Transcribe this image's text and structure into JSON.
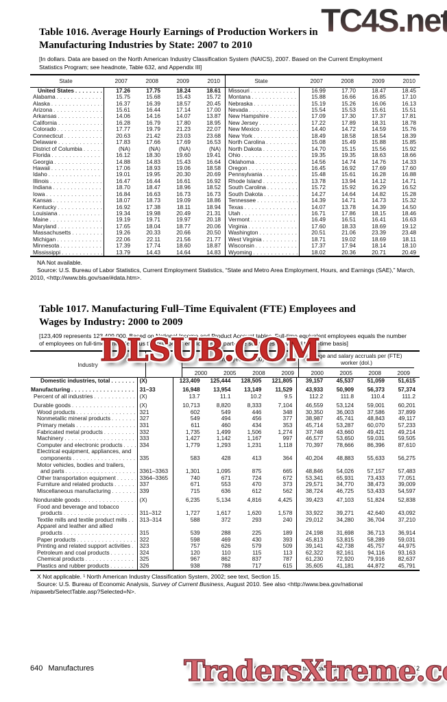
{
  "watermarks": {
    "top": "TC4S.net",
    "middle": "DLSUB.COM",
    "bottom": "TradersXtreme.com"
  },
  "footer": {
    "page_number": "640",
    "section": "Manufactures",
    "census_credit": "U.S. Census Bureau, Statistical Abstract of the United States: 2012"
  },
  "table1016": {
    "title_line1": "Table 1016. Average Hourly Earnings of Production Workers in",
    "title_line2": "Manufacturing Industries by State: 2007 to 2010",
    "headnote": "[In dollars. Data are based on the North American Industry Classification System (NAICS), 2007. Based on the Current Employment Statistics Program; see headnote, Table 632, and Appendix III]",
    "col_headers": [
      "State",
      "2007",
      "2008",
      "2009",
      "2010"
    ],
    "left_rows": [
      {
        "state": "United States",
        "bold": true,
        "values": [
          "17.26",
          "17.75",
          "18.24",
          "18.61"
        ]
      },
      {
        "state": "Alabama",
        "values": [
          "15.75",
          "15.68",
          "15.43",
          "15.72"
        ]
      },
      {
        "state": "Alaska",
        "values": [
          "16.37",
          "16.39",
          "18.57",
          "20.45"
        ]
      },
      {
        "state": "Arizona",
        "values": [
          "15.61",
          "16.44",
          "17.14",
          "17.00"
        ]
      },
      {
        "state": "Arkansas",
        "values": [
          "14.06",
          "14.16",
          "14.07",
          "13.87"
        ]
      },
      {
        "state": "California",
        "values": [
          "16.28",
          "16.79",
          "17.80",
          "18.95"
        ]
      },
      {
        "state": "Colorado",
        "values": [
          "17.77",
          "19.79",
          "21.23",
          "22.07"
        ]
      },
      {
        "state": "Connecticut",
        "values": [
          "20.63",
          "21.42",
          "23.03",
          "23.68"
        ]
      },
      {
        "state": "Delaware",
        "values": [
          "17.83",
          "17.66",
          "17.69",
          "16.53"
        ]
      },
      {
        "state": "District of Columbia",
        "values": [
          "(NA)",
          "(NA)",
          "(NA)",
          "(NA)"
        ]
      },
      {
        "state": "Florida",
        "values": [
          "16.12",
          "18.30",
          "19.60",
          "19.41"
        ]
      },
      {
        "state": "Georgia",
        "values": [
          "14.88",
          "14.83",
          "15.43",
          "16.64"
        ]
      },
      {
        "state": "Hawaii",
        "values": [
          "17.06",
          "18.93",
          "19.06",
          "18.58"
        ]
      },
      {
        "state": "Idaho",
        "values": [
          "19.01",
          "19.95",
          "20.30",
          "20.69"
        ]
      },
      {
        "state": "Illinois",
        "values": [
          "16.47",
          "16.44",
          "16.61",
          "16.92"
        ]
      },
      {
        "state": "Indiana",
        "values": [
          "18.70",
          "18.47",
          "18.96",
          "18.52"
        ]
      },
      {
        "state": "Iowa",
        "values": [
          "16.84",
          "16.63",
          "16.73",
          "16.73"
        ]
      },
      {
        "state": "Kansas",
        "values": [
          "18.07",
          "18.73",
          "19.09",
          "18.86"
        ]
      },
      {
        "state": "Kentucky",
        "values": [
          "16.92",
          "17.38",
          "18.11",
          "18.94"
        ]
      },
      {
        "state": "Louisiana",
        "values": [
          "19.34",
          "19.98",
          "20.49",
          "21.31"
        ]
      },
      {
        "state": "Maine",
        "values": [
          "19.19",
          "19.71",
          "19.97",
          "20.18"
        ]
      },
      {
        "state": "Maryland",
        "values": [
          "17.65",
          "18.04",
          "18.77",
          "20.06"
        ]
      },
      {
        "state": "Massachusetts",
        "values": [
          "19.26",
          "20.33",
          "20.66",
          "20.50"
        ]
      },
      {
        "state": "Michigan",
        "values": [
          "22.06",
          "22.11",
          "21.56",
          "21.77"
        ]
      },
      {
        "state": "Minnesota",
        "values": [
          "17.39",
          "17.74",
          "18.60",
          "18.87"
        ]
      },
      {
        "state": "Mississippi",
        "values": [
          "13.79",
          "14.43",
          "14.64",
          "14.83"
        ]
      }
    ],
    "right_rows": [
      {
        "state": "Missouri",
        "values": [
          "16.99",
          "17.70",
          "18.47",
          "18.45"
        ]
      },
      {
        "state": "Montana",
        "values": [
          "15.88",
          "16.66",
          "16.85",
          "17.10"
        ]
      },
      {
        "state": "Nebraska",
        "values": [
          "15.19",
          "15.26",
          "16.06",
          "16.13"
        ]
      },
      {
        "state": "Nevada",
        "values": [
          "15.54",
          "15.53",
          "15.61",
          "15.51"
        ]
      },
      {
        "state": "New Hampshire",
        "values": [
          "17.09",
          "17.30",
          "17.37",
          "17.81"
        ]
      },
      {
        "state": "New Jersey",
        "values": [
          "17.22",
          "17.89",
          "18.31",
          "18.78"
        ]
      },
      {
        "state": "New Mexico",
        "values": [
          "14.40",
          "14.72",
          "14.59",
          "15.76"
        ]
      },
      {
        "state": "New York",
        "values": [
          "18.49",
          "18.58",
          "18.54",
          "18.39"
        ]
      },
      {
        "state": "North Carolina",
        "values": [
          "15.08",
          "15.49",
          "15.88",
          "15.85"
        ]
      },
      {
        "state": "North Dakota",
        "values": [
          "14.70",
          "15.15",
          "15.56",
          "15.92"
        ]
      },
      {
        "state": "Ohio",
        "values": [
          "19.35",
          "19.35",
          "18.63",
          "18.66"
        ]
      },
      {
        "state": "Oklahoma",
        "values": [
          "14.56",
          "14.74",
          "14.76",
          "14.33"
        ]
      },
      {
        "state": "Oregon",
        "values": [
          "16.45",
          "16.92",
          "17.69",
          "17.60"
        ]
      },
      {
        "state": "Pennsylvania",
        "values": [
          "15.48",
          "15.61",
          "16.28",
          "16.88"
        ]
      },
      {
        "state": "Rhode Island",
        "values": [
          "13.78",
          "13.94",
          "14.12",
          "14.71"
        ]
      },
      {
        "state": "South Carolina",
        "values": [
          "15.72",
          "15.92",
          "16.29",
          "16.52"
        ]
      },
      {
        "state": "South Dakota",
        "values": [
          "14.27",
          "14.64",
          "14.82",
          "15.28"
        ]
      },
      {
        "state": "Tennessee",
        "values": [
          "14.39",
          "14.71",
          "14.73",
          "15.32"
        ]
      },
      {
        "state": "Texas",
        "values": [
          "14.07",
          "13.78",
          "14.39",
          "14.50"
        ]
      },
      {
        "state": "Utah",
        "values": [
          "16.71",
          "17.86",
          "18.15",
          "18.46"
        ]
      },
      {
        "state": "Vermont",
        "values": [
          "16.49",
          "16.51",
          "16.41",
          "16.63"
        ]
      },
      {
        "state": "Virginia",
        "values": [
          "17.60",
          "18.33",
          "18.69",
          "19.12"
        ]
      },
      {
        "state": "Washington",
        "values": [
          "20.51",
          "21.06",
          "23.39",
          "23.48"
        ]
      },
      {
        "state": "West Virginia",
        "values": [
          "18.71",
          "19.02",
          "18.69",
          "18.11"
        ]
      },
      {
        "state": "Wisconsin",
        "values": [
          "17.37",
          "17.94",
          "18.14",
          "18.10"
        ]
      },
      {
        "state": "Wyoming",
        "values": [
          "18.02",
          "20.36",
          "20.71",
          "20.49"
        ]
      }
    ],
    "na_note": "NA Not available.",
    "source": "Source: U.S. Bureau of Labor Statistics, Current Employment Statistics, “State and Metro Area Employment, Hours, and Earnings (SAE),” March, 2010, <http://www.bls.gov/sae/#data.htm>."
  },
  "table1017": {
    "title_line1": "Table 1017. Manufacturing Full–Time Equivalent (FTE) Employees and",
    "title_line2": "Wages by Industry: 2000 to 2009",
    "headnote": "[123,409 represents 123,409,000. Based on National Income and Product Account tables. Full-time equivalent employees equals the number of employees on full-time schedules plus the number of employees for part-time schedules converted to full-time basis]",
    "industry_header": "Industry",
    "code_header": "",
    "employees_group_header": "Employees (1,000)",
    "wage_group_header": "Wage and salary accruals per (FTE) worker (dol.)",
    "year_headers": [
      "2000",
      "2005",
      "2008",
      "2009"
    ],
    "rows": [
      {
        "label_lines": [
          "Domestic industries, total"
        ],
        "indent": 3,
        "bold": true,
        "code": "(X)",
        "emp": [
          "123,409",
          "125,444",
          "128,505",
          "121,805"
        ],
        "wage": [
          "39,157",
          "45,537",
          "51,059",
          "51,615"
        ]
      },
      {
        "label_lines": [
          "Manufacturing"
        ],
        "indent": 0,
        "bold": true,
        "gap": true,
        "code": "31–33",
        "emp": [
          "16,948",
          "13,954",
          "13,149",
          "11,529"
        ],
        "wage": [
          "43,933",
          "50,909",
          "56,373",
          "57,374"
        ]
      },
      {
        "label_lines": [
          "Percent of all industries"
        ],
        "indent": 1,
        "code": "(X)",
        "emp": [
          "13.7",
          "11.1",
          "10.2",
          "9.5"
        ],
        "wage": [
          "112.2",
          "111.8",
          "110.4",
          "111.2"
        ]
      },
      {
        "label_lines": [
          "Durable goods"
        ],
        "indent": 1,
        "gap": true,
        "code": "(X)",
        "emp": [
          "10,713",
          "8,820",
          "8,333",
          "7,104"
        ],
        "wage": [
          "46,559",
          "53,124",
          "59,001",
          "60,201"
        ]
      },
      {
        "label_lines": [
          "Wood products"
        ],
        "indent": 2,
        "code": "321",
        "emp": [
          "602",
          "549",
          "446",
          "348"
        ],
        "wage": [
          "30,350",
          "36,003",
          "37,586",
          "37,899"
        ]
      },
      {
        "label_lines": [
          "Nonmetallic mineral products"
        ],
        "indent": 2,
        "code": "327",
        "emp": [
          "549",
          "494",
          "456",
          "377"
        ],
        "wage": [
          "38,987",
          "45,741",
          "48,843",
          "49,117"
        ]
      },
      {
        "label_lines": [
          "Primary metals"
        ],
        "indent": 2,
        "code": "331",
        "emp": [
          "611",
          "460",
          "434",
          "353"
        ],
        "wage": [
          "45,714",
          "53,287",
          "60,070",
          "57,233"
        ]
      },
      {
        "label_lines": [
          "Fabricated metal products"
        ],
        "indent": 2,
        "code": "332",
        "emp": [
          "1,735",
          "1,499",
          "1,506",
          "1,274"
        ],
        "wage": [
          "37,748",
          "43,660",
          "49,421",
          "49,214"
        ]
      },
      {
        "label_lines": [
          "Machinery"
        ],
        "indent": 2,
        "code": "333",
        "emp": [
          "1,427",
          "1,142",
          "1,167",
          "997"
        ],
        "wage": [
          "46,577",
          "53,650",
          "59,031",
          "59,505"
        ]
      },
      {
        "label_lines": [
          "Computer and electronic products"
        ],
        "indent": 2,
        "code": "334",
        "emp": [
          "1,779",
          "1,293",
          "1,231",
          "1,118"
        ],
        "wage": [
          "70,397",
          "78,666",
          "86,396",
          "87,610"
        ]
      },
      {
        "label_lines": [
          "Electrical equipment, appliances, and",
          "components"
        ],
        "indent": 2,
        "code": "335",
        "emp": [
          "583",
          "428",
          "413",
          "364"
        ],
        "wage": [
          "40,204",
          "48,883",
          "55,633",
          "56,275"
        ]
      },
      {
        "label_lines": [
          "Motor vehicles, bodies and trailers,",
          "and parts"
        ],
        "indent": 2,
        "code": "3361–3363",
        "emp": [
          "1,301",
          "1,095",
          "875",
          "665"
        ],
        "wage": [
          "48,846",
          "54,026",
          "57,157",
          "57,483"
        ]
      },
      {
        "label_lines": [
          "Other transportation equipment"
        ],
        "indent": 2,
        "code": "3364–3365",
        "emp": [
          "740",
          "671",
          "724",
          "672"
        ],
        "wage": [
          "53,341",
          "65,931",
          "73,433",
          "77,051"
        ]
      },
      {
        "label_lines": [
          "Furniture and related products"
        ],
        "indent": 2,
        "code": "337",
        "emp": [
          "671",
          "553",
          "470",
          "373"
        ],
        "wage": [
          "29,571",
          "34,770",
          "38,473",
          "39,009"
        ]
      },
      {
        "label_lines": [
          "Miscellaneous manufacturing"
        ],
        "indent": 2,
        "code": "339",
        "emp": [
          "715",
          "636",
          "612",
          "562"
        ],
        "wage": [
          "38,724",
          "46,725",
          "53,433",
          "54,597"
        ]
      },
      {
        "label_lines": [
          "Nondurable goods"
        ],
        "indent": 1,
        "gap": true,
        "code": "(X)",
        "emp": [
          "6,235",
          "5,134",
          "4,816",
          "4,425"
        ],
        "wage": [
          "39,423",
          "47,103",
          "51,824",
          "52,838"
        ]
      },
      {
        "label_lines": [
          "Food and beverage and tobacco",
          "products"
        ],
        "indent": 2,
        "code": "311–312",
        "emp": [
          "1,727",
          "1,617",
          "1,620",
          "1,578"
        ],
        "wage": [
          "33,922",
          "39,271",
          "42,640",
          "43,092"
        ]
      },
      {
        "label_lines": [
          "Textile mills and textile product mills"
        ],
        "indent": 2,
        "code": "313–314",
        "emp": [
          "588",
          "372",
          "293",
          "240"
        ],
        "wage": [
          "29,012",
          "34,280",
          "36,704",
          "37,210"
        ]
      },
      {
        "label_lines": [
          "Apparel and leather and allied",
          "products"
        ],
        "indent": 2,
        "code": "315",
        "emp": [
          "539",
          "288",
          "225",
          "189"
        ],
        "wage": [
          "24,198",
          "31,698",
          "36,713",
          "36,914"
        ]
      },
      {
        "label_lines": [
          "Paper products"
        ],
        "indent": 2,
        "code": "322",
        "emp": [
          "598",
          "469",
          "430",
          "393"
        ],
        "wage": [
          "45,813",
          "53,815",
          "58,289",
          "59,031"
        ]
      },
      {
        "label_lines": [
          "Printing and related support activities"
        ],
        "indent": 2,
        "code": "323",
        "emp": [
          "757",
          "626",
          "579",
          "509"
        ],
        "wage": [
          "39,141",
          "42,738",
          "45,757",
          "44,975"
        ]
      },
      {
        "label_lines": [
          "Petroleum and coal products"
        ],
        "indent": 2,
        "code": "324",
        "emp": [
          "120",
          "110",
          "115",
          "113"
        ],
        "wage": [
          "62,322",
          "82,161",
          "94,116",
          "93,163"
        ]
      },
      {
        "label_lines": [
          "Chemical products"
        ],
        "indent": 2,
        "code": "325",
        "emp": [
          "967",
          "862",
          "837",
          "787"
        ],
        "wage": [
          "61,230",
          "72,920",
          "79,916",
          "82,637"
        ]
      },
      {
        "label_lines": [
          "Plastics and rubber products"
        ],
        "indent": 2,
        "code": "326",
        "emp": [
          "938",
          "788",
          "717",
          "615"
        ],
        "wage": [
          "35,605",
          "41,181",
          "44,872",
          "45,791"
        ]
      }
    ],
    "footnote": "X Not applicable. ¹ North American Industry Classification System, 2002; see text, Section 15.",
    "source_prefix": "Source: U.S. Bureau of Economic Analysis, ",
    "source_italic": "Survey of Current Business",
    "source_suffix": ", August 2010. See also <http://www.bea.gov/national /nipaweb/SelectTable.asp?Selected=N>."
  }
}
